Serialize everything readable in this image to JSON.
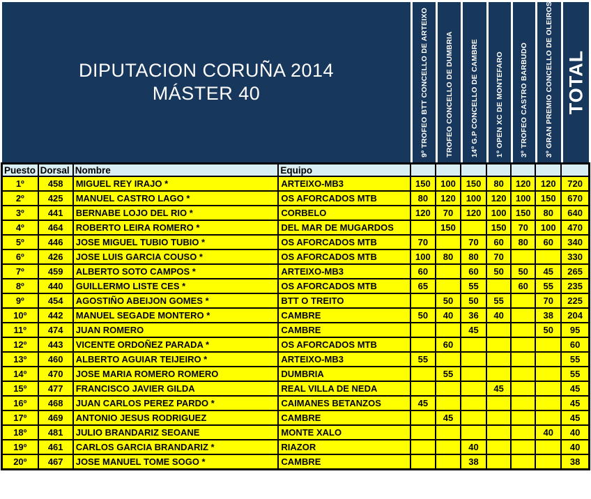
{
  "title": {
    "line1": "DIPUTACION CORUÑA 2014",
    "line2": "MÁSTER 40"
  },
  "banner": {
    "race_headers": [
      "9º TROFEO BTT CONCELLO DE ARTEIXO",
      "TROFEO CONCELLO DE DUMBRIA",
      "14º G.P  CONCELLO DE CAMBRE",
      "1º OPEN XC DE MONTEFARO",
      "3º TROFEO CASTRO BARBUDO",
      "3º GRAN PREMIO CONCELLO DE OLEIROS"
    ],
    "total_label": "TOTAL"
  },
  "table": {
    "headers": {
      "puesto": "Puesto",
      "dorsal": "Dorsal",
      "nombre": "Nombre",
      "equipo": "Equipo"
    },
    "rows": [
      {
        "puesto": "1º",
        "dorsal": "458",
        "nombre": "MIGUEL REY IRAJO  *",
        "equipo": "ARTEIXO-MB3",
        "scores": [
          "150",
          "100",
          "150",
          "80",
          "120",
          "120"
        ],
        "total": "720"
      },
      {
        "puesto": "2º",
        "dorsal": "425",
        "nombre": "MANUEL CASTRO LAGO  *",
        "equipo": "OS AFORCADOS MTB",
        "scores": [
          "80",
          "120",
          "100",
          "120",
          "100",
          "150"
        ],
        "total": "670"
      },
      {
        "puesto": "3º",
        "dorsal": "441",
        "nombre": "BERNABE LOJO DEL RIO  *",
        "equipo": "CORBELO",
        "scores": [
          "120",
          "70",
          "120",
          "100",
          "150",
          "80"
        ],
        "total": "640"
      },
      {
        "puesto": "4º",
        "dorsal": "464",
        "nombre": "ROBERTO LEIRA ROMERO  *",
        "equipo": "DEL MAR DE MUGARDOS",
        "scores": [
          "",
          "150",
          "",
          "150",
          "70",
          "100"
        ],
        "total": "470"
      },
      {
        "puesto": "5º",
        "dorsal": "446",
        "nombre": "JOSE MIGUEL TUBIO TUBIO  *",
        "equipo": "OS AFORCADOS MTB",
        "scores": [
          "70",
          "",
          "70",
          "60",
          "80",
          "60"
        ],
        "total": "340"
      },
      {
        "puesto": "6º",
        "dorsal": "426",
        "nombre": "JOSE LUIS GARCIA COUSO  *",
        "equipo": "OS AFORCADOS MTB",
        "scores": [
          "100",
          "80",
          "80",
          "70",
          "",
          ""
        ],
        "total": "330"
      },
      {
        "puesto": "7º",
        "dorsal": "459",
        "nombre": "ALBERTO SOTO CAMPOS  *",
        "equipo": "ARTEIXO-MB3",
        "scores": [
          "60",
          "",
          "60",
          "50",
          "50",
          "45"
        ],
        "total": "265"
      },
      {
        "puesto": "8º",
        "dorsal": "440",
        "nombre": "GUILLERMO LISTE CES  *",
        "equipo": "OS AFORCADOS MTB",
        "scores": [
          "65",
          "",
          "55",
          "",
          "60",
          "55"
        ],
        "total": "235"
      },
      {
        "puesto": "9º",
        "dorsal": "454",
        "nombre": "AGOSTIÑO ABEIJON GOMES  *",
        "equipo": "BTT O TREITO",
        "scores": [
          "",
          "50",
          "50",
          "55",
          "",
          "70"
        ],
        "total": "225"
      },
      {
        "puesto": "10º",
        "dorsal": "442",
        "nombre": "MANUEL SEGADE MONTERO  *",
        "equipo": "CAMBRE",
        "scores": [
          "50",
          "40",
          "36",
          "40",
          "",
          "38"
        ],
        "total": "204"
      },
      {
        "puesto": "11º",
        "dorsal": "474",
        "nombre": "JUAN ROMERO",
        "equipo": "CAMBRE",
        "scores": [
          "",
          "",
          "45",
          "",
          "",
          "50"
        ],
        "total": "95"
      },
      {
        "puesto": "12º",
        "dorsal": "443",
        "nombre": "VICENTE ORDOÑEZ PARADA  *",
        "equipo": "OS AFORCADOS MTB",
        "scores": [
          "",
          "60",
          "",
          "",
          "",
          ""
        ],
        "total": "60"
      },
      {
        "puesto": "13º",
        "dorsal": "460",
        "nombre": "ALBERTO AGUIAR TEIJEIRO  *",
        "equipo": "ARTEIXO-MB3",
        "scores": [
          "55",
          "",
          "",
          "",
          "",
          ""
        ],
        "total": "55"
      },
      {
        "puesto": "14º",
        "dorsal": "470",
        "nombre": "JOSE MARIA ROMERO ROMERO",
        "equipo": "DUMBRIA",
        "scores": [
          "",
          "55",
          "",
          "",
          "",
          ""
        ],
        "total": "55"
      },
      {
        "puesto": "15º",
        "dorsal": "477",
        "nombre": "FRANCISCO JAVIER GILDA",
        "equipo": "REAL VILLA DE NEDA",
        "scores": [
          "",
          "",
          "",
          "45",
          "",
          ""
        ],
        "total": "45"
      },
      {
        "puesto": "16º",
        "dorsal": "468",
        "nombre": "JUAN CARLOS PEREZ PARDO  *",
        "equipo": "CAIMANES BETANZOS",
        "scores": [
          "45",
          "",
          "",
          "",
          "",
          ""
        ],
        "total": "45"
      },
      {
        "puesto": "17º",
        "dorsal": "469",
        "nombre": "ANTONIO JESUS RODRIGUEZ",
        "equipo": "CAMBRE",
        "scores": [
          "",
          "45",
          "",
          "",
          "",
          ""
        ],
        "total": "45"
      },
      {
        "puesto": "18º",
        "dorsal": "481",
        "nombre": "JULIO BRANDARIZ SEOANE",
        "equipo": "MONTE XALO",
        "scores": [
          "",
          "",
          "",
          "",
          "",
          "40"
        ],
        "total": "40"
      },
      {
        "puesto": "19º",
        "dorsal": "461",
        "nombre": "CARLOS GARCIA BRANDARIZ  *",
        "equipo": "RIAZOR",
        "scores": [
          "",
          "",
          "40",
          "",
          "",
          ""
        ],
        "total": "40"
      },
      {
        "puesto": "20º",
        "dorsal": "467",
        "nombre": "JOSE MANUEL TOME SOGO  *",
        "equipo": "CAMBRE",
        "scores": [
          "",
          "",
          "38",
          "",
          "",
          ""
        ],
        "total": "38"
      }
    ]
  },
  "colors": {
    "navy": "#17375D",
    "yellow": "#FFFF00",
    "header_cyan": "#D9EEF3",
    "grid": "#000000",
    "text": "#000000",
    "separator_white": "#FFFFFF"
  }
}
